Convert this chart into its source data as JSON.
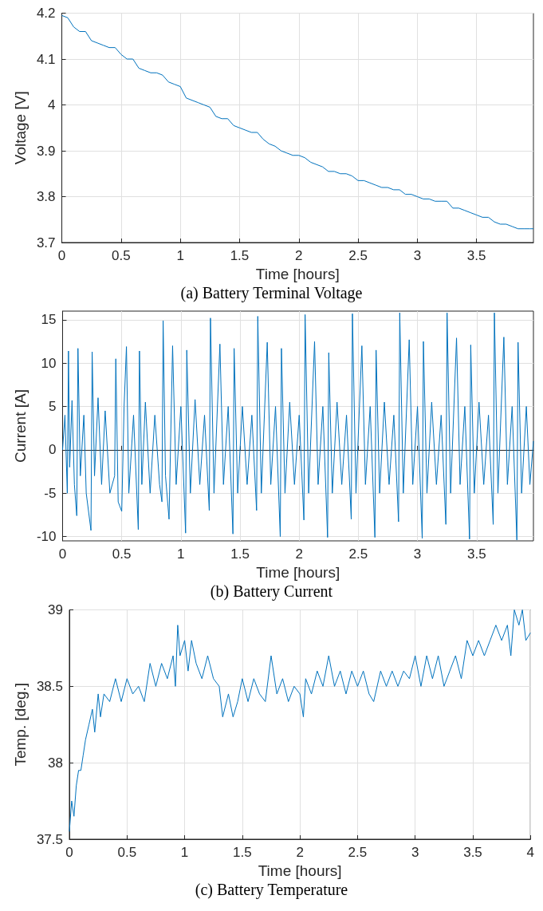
{
  "chart_data": [
    {
      "type": "line",
      "title": "(a) Battery Terminal Voltage",
      "xlabel": "Time [hours]",
      "ylabel": "Voltage [V]",
      "xlim": [
        0,
        3.98
      ],
      "xticks": [
        0,
        0.5,
        1,
        1.5,
        2,
        2.5,
        3,
        3.5
      ],
      "ylim": [
        3.7,
        4.2
      ],
      "yticks": [
        3.7,
        3.8,
        3.9,
        4,
        4.1,
        4.2
      ],
      "grid": true,
      "series": [
        {
          "color": "#0072bd",
          "x": [
            0,
            0.05,
            0.1,
            0.15,
            0.2,
            0.25,
            0.3,
            0.35,
            0.4,
            0.45,
            0.5,
            0.55,
            0.6,
            0.65,
            0.7,
            0.75,
            0.8,
            0.85,
            0.9,
            0.95,
            1.0,
            1.05,
            1.1,
            1.15,
            1.2,
            1.25,
            1.3,
            1.35,
            1.4,
            1.45,
            1.5,
            1.55,
            1.6,
            1.65,
            1.7,
            1.75,
            1.8,
            1.85,
            1.9,
            1.95,
            2.0,
            2.05,
            2.1,
            2.15,
            2.2,
            2.25,
            2.3,
            2.35,
            2.4,
            2.45,
            2.5,
            2.55,
            2.6,
            2.65,
            2.7,
            2.75,
            2.8,
            2.85,
            2.9,
            2.95,
            3.0,
            3.05,
            3.1,
            3.15,
            3.2,
            3.25,
            3.3,
            3.35,
            3.4,
            3.45,
            3.5,
            3.55,
            3.6,
            3.65,
            3.7,
            3.75,
            3.8,
            3.85,
            3.9,
            3.95,
            3.98
          ],
          "values": [
            4.195,
            4.19,
            4.17,
            4.16,
            4.16,
            4.14,
            4.135,
            4.13,
            4.125,
            4.125,
            4.11,
            4.1,
            4.1,
            4.08,
            4.075,
            4.07,
            4.07,
            4.065,
            4.05,
            4.045,
            4.04,
            4.015,
            4.01,
            4.005,
            4.0,
            3.995,
            3.975,
            3.97,
            3.97,
            3.955,
            3.95,
            3.945,
            3.94,
            3.94,
            3.925,
            3.915,
            3.91,
            3.9,
            3.895,
            3.89,
            3.89,
            3.885,
            3.875,
            3.87,
            3.865,
            3.855,
            3.855,
            3.85,
            3.85,
            3.845,
            3.835,
            3.835,
            3.83,
            3.825,
            3.82,
            3.82,
            3.815,
            3.815,
            3.805,
            3.805,
            3.8,
            3.795,
            3.795,
            3.79,
            3.79,
            3.79,
            3.775,
            3.775,
            3.77,
            3.765,
            3.76,
            3.755,
            3.755,
            3.745,
            3.74,
            3.74,
            3.735,
            3.73,
            3.73,
            3.73,
            3.73
          ]
        }
      ]
    },
    {
      "type": "line",
      "title": "(b) Battery Current",
      "xlabel": "Time [hours]",
      "ylabel": "Current [A]",
      "xlim": [
        0,
        3.98
      ],
      "xticks": [
        0,
        0.5,
        1,
        1.5,
        2,
        2.5,
        3,
        3.5
      ],
      "ylim": [
        -10.5,
        16
      ],
      "yticks": [
        -10,
        -5,
        0,
        5,
        10,
        15
      ],
      "grid": true,
      "series": [
        {
          "color": "#0072bd",
          "x": [
            0,
            0.02,
            0.04,
            0.05,
            0.06,
            0.08,
            0.1,
            0.12,
            0.13,
            0.15,
            0.18,
            0.2,
            0.24,
            0.25,
            0.27,
            0.3,
            0.33,
            0.36,
            0.4,
            0.44,
            0.45,
            0.47,
            0.5,
            0.52,
            0.54,
            0.56,
            0.6,
            0.64,
            0.65,
            0.67,
            0.7,
            0.74,
            0.78,
            0.82,
            0.84,
            0.85,
            0.87,
            0.9,
            0.93,
            0.96,
            1.0,
            1.04,
            1.05,
            1.08,
            1.12,
            1.16,
            1.2,
            1.24,
            1.25,
            1.28,
            1.33,
            1.36,
            1.4,
            1.44,
            1.45,
            1.48,
            1.52,
            1.56,
            1.6,
            1.64,
            1.65,
            1.68,
            1.73,
            1.76,
            1.8,
            1.84,
            1.85,
            1.88,
            1.92,
            1.96,
            2.0,
            2.04,
            2.05,
            2.08,
            2.13,
            2.16,
            2.2,
            2.24,
            2.25,
            2.28,
            2.32,
            2.36,
            2.4,
            2.44,
            2.45,
            2.48,
            2.53,
            2.56,
            2.6,
            2.64,
            2.65,
            2.68,
            2.72,
            2.76,
            2.8,
            2.84,
            2.85,
            2.88,
            2.93,
            2.96,
            3.0,
            3.04,
            3.05,
            3.08,
            3.12,
            3.16,
            3.2,
            3.24,
            3.25,
            3.28,
            3.33,
            3.36,
            3.4,
            3.44,
            3.45,
            3.48,
            3.52,
            3.56,
            3.6,
            3.64,
            3.65,
            3.68,
            3.73,
            3.76,
            3.8,
            3.84,
            3.85,
            3.88,
            3.92,
            3.95,
            3.98
          ],
          "values": [
            0,
            4,
            -5,
            11.4,
            -2,
            5.7,
            -4,
            -7.6,
            11.7,
            -3,
            4,
            -5,
            -9.3,
            11.3,
            -3,
            6,
            -4,
            4.5,
            -5,
            -3,
            10.5,
            -6,
            -7.1,
            5,
            11.9,
            -5,
            4,
            -9.2,
            11.4,
            -4,
            5.5,
            -5,
            4,
            -4,
            -6,
            14.9,
            -3,
            -8,
            12,
            -4,
            5,
            -9.6,
            11.5,
            -5,
            5.8,
            -4,
            4,
            -7,
            15.2,
            -5,
            12.2,
            -4,
            5,
            -9.7,
            11.7,
            -5,
            5,
            -4,
            4,
            -7,
            15.4,
            -5,
            12.4,
            -4,
            5,
            -10,
            11.7,
            -5,
            5.5,
            -4,
            4,
            -8.1,
            15.6,
            -5,
            12.5,
            -4,
            5,
            -10.1,
            11.2,
            -5,
            5.5,
            -4,
            4,
            -8,
            15.7,
            -5,
            12,
            -4,
            5,
            -10.1,
            11.5,
            -5,
            5.5,
            -4,
            4,
            -8.3,
            15.8,
            -5,
            12.7,
            -4,
            5,
            -10.2,
            12.5,
            -5,
            5.5,
            -4,
            4,
            -8.6,
            15.8,
            -5,
            12.9,
            -4,
            5,
            -10.3,
            12.1,
            -5,
            5.5,
            -4,
            4,
            -8.6,
            15.8,
            -5,
            13,
            -4,
            5,
            -10.4,
            12.4,
            -5,
            5,
            -4,
            1
          ]
        }
      ]
    },
    {
      "type": "line",
      "title": "(c) Battery Temperature",
      "xlabel": "Time [hours]",
      "ylabel": "Temp. [deg.]",
      "xlim": [
        0,
        4
      ],
      "xticks": [
        0,
        0.5,
        1,
        1.5,
        2,
        2.5,
        3,
        3.5,
        4
      ],
      "ylim": [
        37.5,
        39
      ],
      "yticks": [
        37.5,
        38,
        38.5,
        39
      ],
      "grid": true,
      "series": [
        {
          "color": "#0072bd",
          "x": [
            0,
            0.02,
            0.04,
            0.06,
            0.08,
            0.1,
            0.12,
            0.14,
            0.17,
            0.2,
            0.22,
            0.25,
            0.27,
            0.3,
            0.35,
            0.4,
            0.45,
            0.5,
            0.55,
            0.6,
            0.65,
            0.7,
            0.75,
            0.8,
            0.85,
            0.9,
            0.92,
            0.94,
            0.96,
            1.0,
            1.03,
            1.06,
            1.1,
            1.15,
            1.2,
            1.25,
            1.3,
            1.33,
            1.38,
            1.42,
            1.46,
            1.5,
            1.55,
            1.6,
            1.65,
            1.7,
            1.75,
            1.8,
            1.85,
            1.9,
            1.95,
            2.0,
            2.03,
            2.05,
            2.1,
            2.15,
            2.2,
            2.25,
            2.3,
            2.35,
            2.4,
            2.45,
            2.5,
            2.55,
            2.6,
            2.64,
            2.7,
            2.75,
            2.8,
            2.85,
            2.9,
            2.95,
            3.0,
            3.05,
            3.1,
            3.15,
            3.2,
            3.25,
            3.3,
            3.35,
            3.4,
            3.45,
            3.5,
            3.55,
            3.6,
            3.65,
            3.7,
            3.75,
            3.8,
            3.83,
            3.86,
            3.9,
            3.93,
            3.96,
            4.0
          ],
          "values": [
            37.55,
            37.75,
            37.65,
            37.85,
            37.95,
            37.95,
            38.05,
            38.15,
            38.25,
            38.35,
            38.2,
            38.45,
            38.3,
            38.45,
            38.4,
            38.55,
            38.4,
            38.55,
            38.45,
            38.5,
            38.4,
            38.65,
            38.5,
            38.65,
            38.55,
            38.7,
            38.5,
            38.9,
            38.7,
            38.8,
            38.6,
            38.8,
            38.65,
            38.55,
            38.7,
            38.55,
            38.5,
            38.3,
            38.45,
            38.3,
            38.4,
            38.55,
            38.4,
            38.55,
            38.45,
            38.4,
            38.7,
            38.45,
            38.55,
            38.4,
            38.5,
            38.45,
            38.3,
            38.55,
            38.45,
            38.6,
            38.5,
            38.7,
            38.5,
            38.6,
            38.45,
            38.6,
            38.5,
            38.6,
            38.45,
            38.4,
            38.6,
            38.5,
            38.6,
            38.5,
            38.6,
            38.55,
            38.7,
            38.5,
            38.7,
            38.55,
            38.7,
            38.5,
            38.6,
            38.7,
            38.55,
            38.8,
            38.7,
            38.8,
            38.7,
            38.8,
            38.9,
            38.8,
            38.9,
            38.7,
            39.0,
            38.9,
            39.0,
            38.8,
            38.85
          ]
        }
      ]
    }
  ]
}
